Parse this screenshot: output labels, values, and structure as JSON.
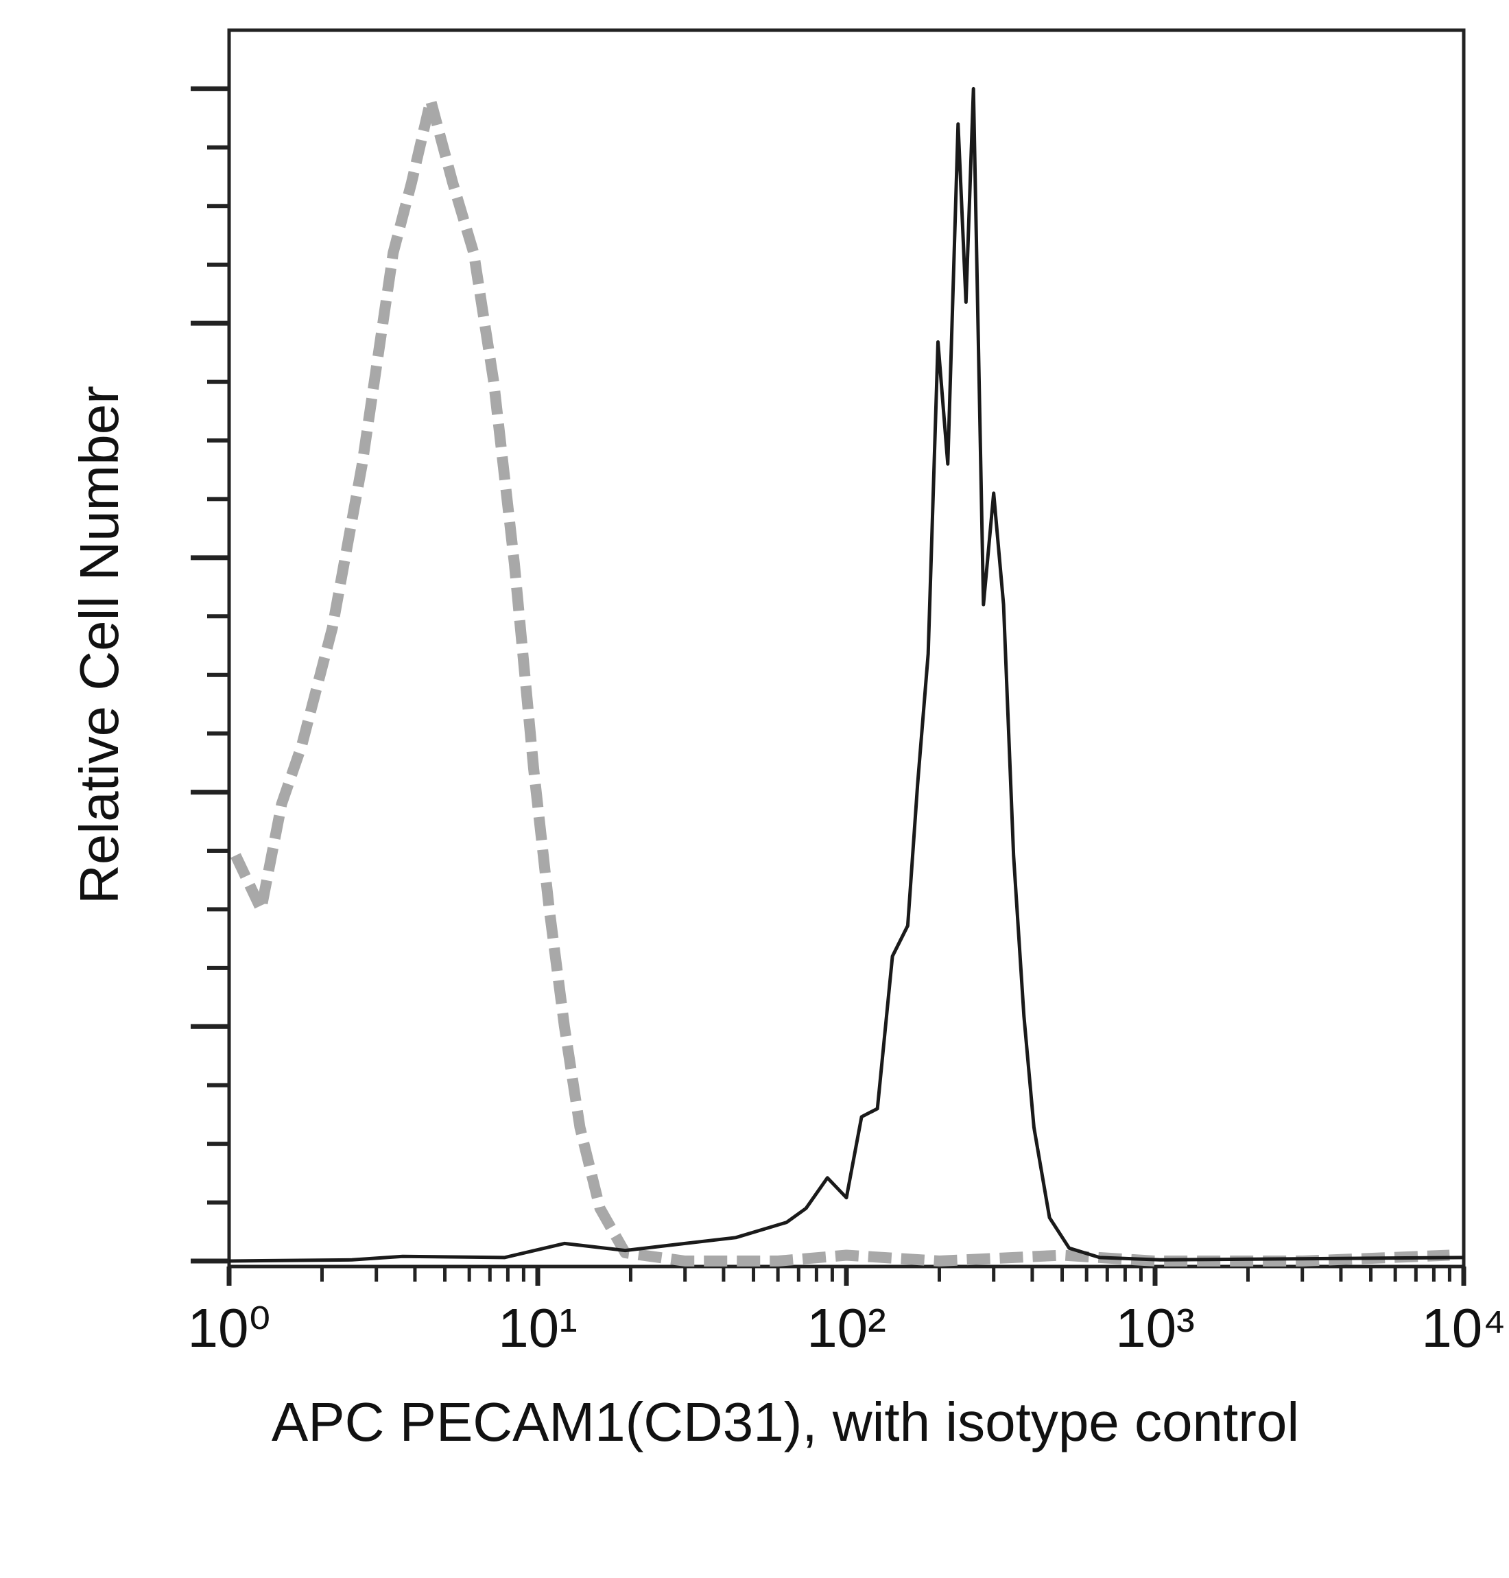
{
  "chart_data": {
    "type": "line",
    "xlabel": "APC PECAM1(CD31), with isotype control",
    "ylabel": "Relative Cell Number",
    "xscale": "log",
    "xlim": [
      1,
      10000
    ],
    "xticks": [
      {
        "value": 1,
        "label": "10⁰"
      },
      {
        "value": 10,
        "label": "10¹"
      },
      {
        "value": 100,
        "label": "10²"
      },
      {
        "value": 1000,
        "label": "10³"
      },
      {
        "value": 10000,
        "label": "10⁴"
      }
    ],
    "xminor_ticks": [
      2,
      3,
      4,
      5,
      6,
      7,
      8,
      9,
      20,
      30,
      40,
      50,
      60,
      70,
      80,
      90,
      200,
      300,
      400,
      500,
      600,
      700,
      800,
      900,
      2000,
      3000,
      4000,
      5000,
      6000,
      7000,
      8000,
      9000
    ],
    "ylim": [
      0,
      105
    ],
    "yticks": [
      0,
      20,
      40,
      60,
      80,
      100
    ],
    "yminor_ticks": [
      5,
      10,
      15,
      25,
      30,
      35,
      45,
      50,
      55,
      65,
      70,
      75,
      85,
      90,
      95
    ],
    "series": [
      {
        "color": "#a8a8a8",
        "dashed": true,
        "x": [
          1.05,
          1.27,
          1.48,
          1.72,
          2.16,
          2.7,
          3.4,
          3.9,
          4.5,
          5.3,
          6.2,
          7.2,
          8.4,
          9.7,
          10.9,
          12.2,
          13.7,
          15.9,
          19.2,
          30,
          60,
          100,
          200,
          500,
          1000,
          3000,
          9000
        ],
        "values": [
          34.6,
          30,
          39,
          44,
          54,
          68,
          86,
          92,
          99,
          92,
          86,
          75,
          59.5,
          42,
          30,
          20,
          11.4,
          4.5,
          0.7,
          0,
          0,
          0.5,
          0,
          0.5,
          0,
          0,
          0.5
        ]
      },
      {
        "color": "#1a1a1a",
        "dashed": false,
        "x": [
          1,
          2.5,
          3.65,
          7.8,
          12.2,
          19.2,
          30,
          43.8,
          64,
          74,
          86.8,
          100,
          112,
          126,
          141,
          158,
          170,
          184,
          198,
          213,
          230,
          244,
          258,
          278,
          300,
          323,
          348,
          376,
          405,
          455,
          527,
          662,
          1040,
          10000
        ],
        "values": [
          0,
          0.1,
          0.4,
          0.3,
          1.5,
          0.9,
          1.5,
          2,
          3.3,
          4.5,
          7.1,
          5.4,
          12.3,
          13,
          26,
          28.6,
          40.6,
          51.8,
          78.4,
          68,
          97,
          81.8,
          100,
          56,
          65.5,
          56,
          34.6,
          20.9,
          11.4,
          3.7,
          1.1,
          0.3,
          0.1,
          0.3
        ]
      }
    ]
  }
}
